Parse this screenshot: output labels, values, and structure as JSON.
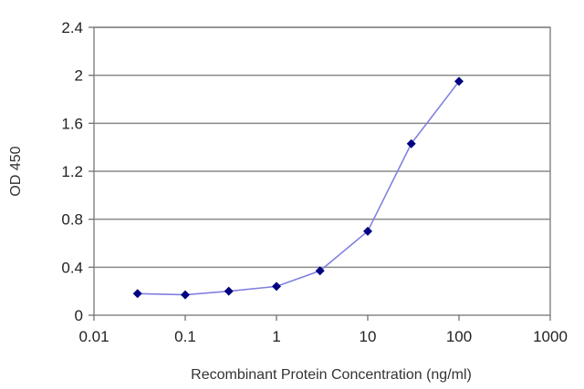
{
  "chart_data": {
    "type": "line",
    "title": "",
    "xlabel": "Recombinant Protein Concentration (ng/ml)",
    "ylabel": "OD 450",
    "x_scale": "log",
    "xlim": [
      0.01,
      1000
    ],
    "ylim": [
      0,
      2.4
    ],
    "x_ticks": [
      "0.01",
      "0.1",
      "1",
      "10",
      "100",
      "1000"
    ],
    "x_tick_values": [
      0.01,
      0.1,
      1,
      10,
      100,
      1000
    ],
    "y_ticks": [
      "0",
      "0.4",
      "0.8",
      "1.2",
      "1.6",
      "2",
      "2.4"
    ],
    "y_tick_values": [
      0,
      0.4,
      0.8,
      1.2,
      1.6,
      2,
      2.4
    ],
    "grid": "horizontal",
    "legend": "none",
    "series": [
      {
        "x": [
          0.03,
          0.1,
          0.3,
          1,
          3,
          10,
          30,
          100
        ],
        "y": [
          0.18,
          0.17,
          0.2,
          0.24,
          0.37,
          0.7,
          1.43,
          1.95
        ],
        "line_color": "#8080e0",
        "marker_color": "#000080"
      }
    ]
  }
}
